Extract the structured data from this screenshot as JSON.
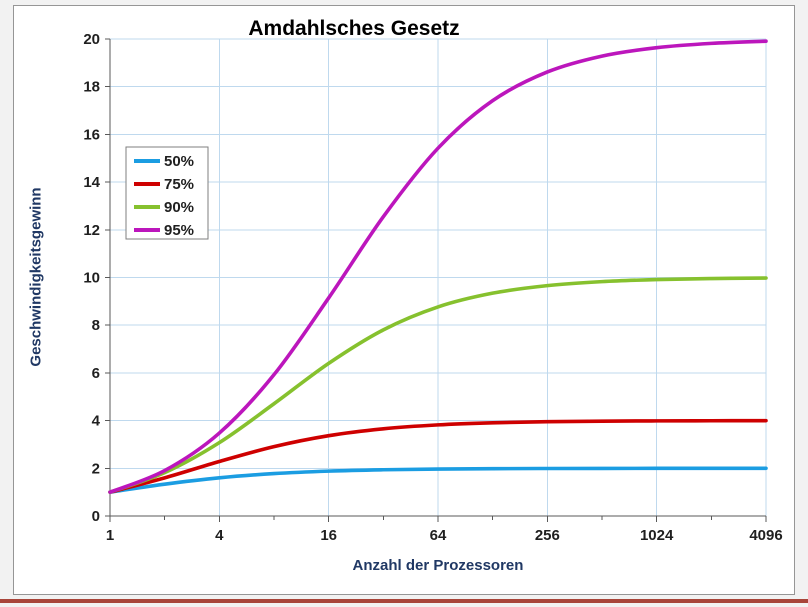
{
  "page": {
    "background": "#f2f2f2",
    "frame_border": "#969696",
    "bottom_rule_color": "#a8453a"
  },
  "chart_data": {
    "type": "line",
    "title": "Amdahlsches Gesetz",
    "xlabel": "Anzahl der Prozessoren",
    "ylabel": "Geschwindigkeitsgewinn",
    "x_scale": "log2",
    "x": [
      1,
      2,
      4,
      8,
      16,
      32,
      64,
      128,
      256,
      512,
      1024,
      2048,
      4096
    ],
    "x_ticks": [
      1,
      4,
      16,
      64,
      256,
      1024,
      4096
    ],
    "x_minor_ticks": [
      2,
      8,
      32,
      128,
      512,
      2048
    ],
    "xlim": [
      1,
      4096
    ],
    "ylim": [
      0,
      20
    ],
    "y_ticks": [
      0,
      2,
      4,
      6,
      8,
      10,
      12,
      14,
      16,
      18,
      20
    ],
    "grid": true,
    "grid_color": "#bfd9ee",
    "axis_color": "#595959",
    "tick_text_color": "#1f1f1f",
    "axis_label_color": "#203864",
    "title_color": "#000000",
    "legend_position": "upper-left-inside",
    "legend_border_color": "#7f7f7f",
    "legend_background": "#ffffff",
    "series": [
      {
        "name": "50%",
        "color": "#1b9de2",
        "values": [
          1,
          1.333,
          1.6,
          1.778,
          1.882,
          1.939,
          1.969,
          1.984,
          1.992,
          1.996,
          1.998,
          1.999,
          2.0
        ]
      },
      {
        "name": "75%",
        "color": "#ce0000",
        "values": [
          1,
          1.6,
          2.286,
          2.909,
          3.368,
          3.657,
          3.821,
          3.908,
          3.954,
          3.977,
          3.988,
          3.994,
          3.997
        ]
      },
      {
        "name": "90%",
        "color": "#86c12e",
        "values": [
          1,
          1.818,
          3.077,
          4.706,
          6.4,
          7.805,
          8.767,
          9.343,
          9.66,
          9.827,
          9.913,
          9.956,
          9.978
        ]
      },
      {
        "name": "95%",
        "color": "#bc16bc",
        "values": [
          1,
          1.905,
          3.478,
          5.926,
          9.143,
          12.549,
          15.422,
          17.415,
          18.618,
          19.284,
          19.636,
          19.816,
          19.908
        ]
      }
    ]
  }
}
